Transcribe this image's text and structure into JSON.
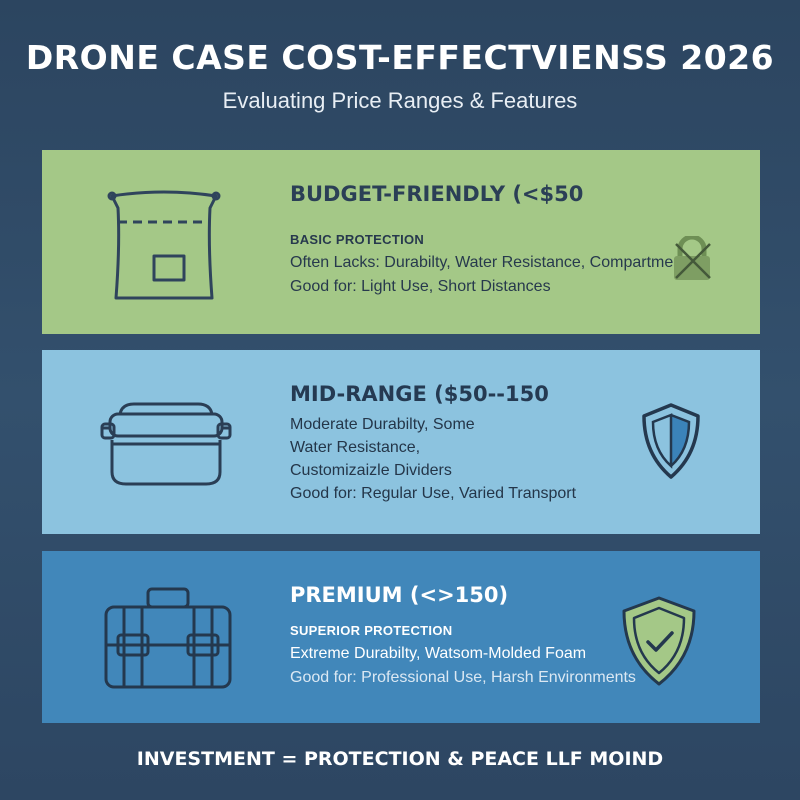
{
  "header": {
    "title": "DRONE CASE COST-EFFECTVIENSS 2026",
    "subtitle": "Evaluating Price Ranges & Features"
  },
  "tiers": [
    {
      "title": "BUDGET-FRIENDLY (<$50",
      "tagline": "BASIC PROTECTION",
      "lines": [
        "Often Lacks: Durabilty, Water Resistance, Compartments",
        "Good for: Light Use, Short Distances"
      ],
      "icon": "crossed-lock-icon",
      "color": "#a4c887"
    },
    {
      "title": "MID-RANGE ($50--150",
      "tagline": "",
      "lines": [
        "Moderate Durabilty, Some",
        "Water Resistance,",
        "Customizaizle Dividers",
        "Good for: Regular Use, Varied Transport"
      ],
      "icon": "shield-icon",
      "color": "#8cc3df"
    },
    {
      "title": "PREMIUM (<>150)",
      "tagline": "SUPERIOR PROTECTION",
      "lines": [
        "Extreme Durabilty, Watsom-Molded Foam",
        "Good for: Professional Use, Harsh Environments"
      ],
      "icon": "shield-check-icon",
      "color": "#4187ba"
    }
  ],
  "footer": "INVESTMENT = PROTECTION & PEACE LLF MOIND"
}
